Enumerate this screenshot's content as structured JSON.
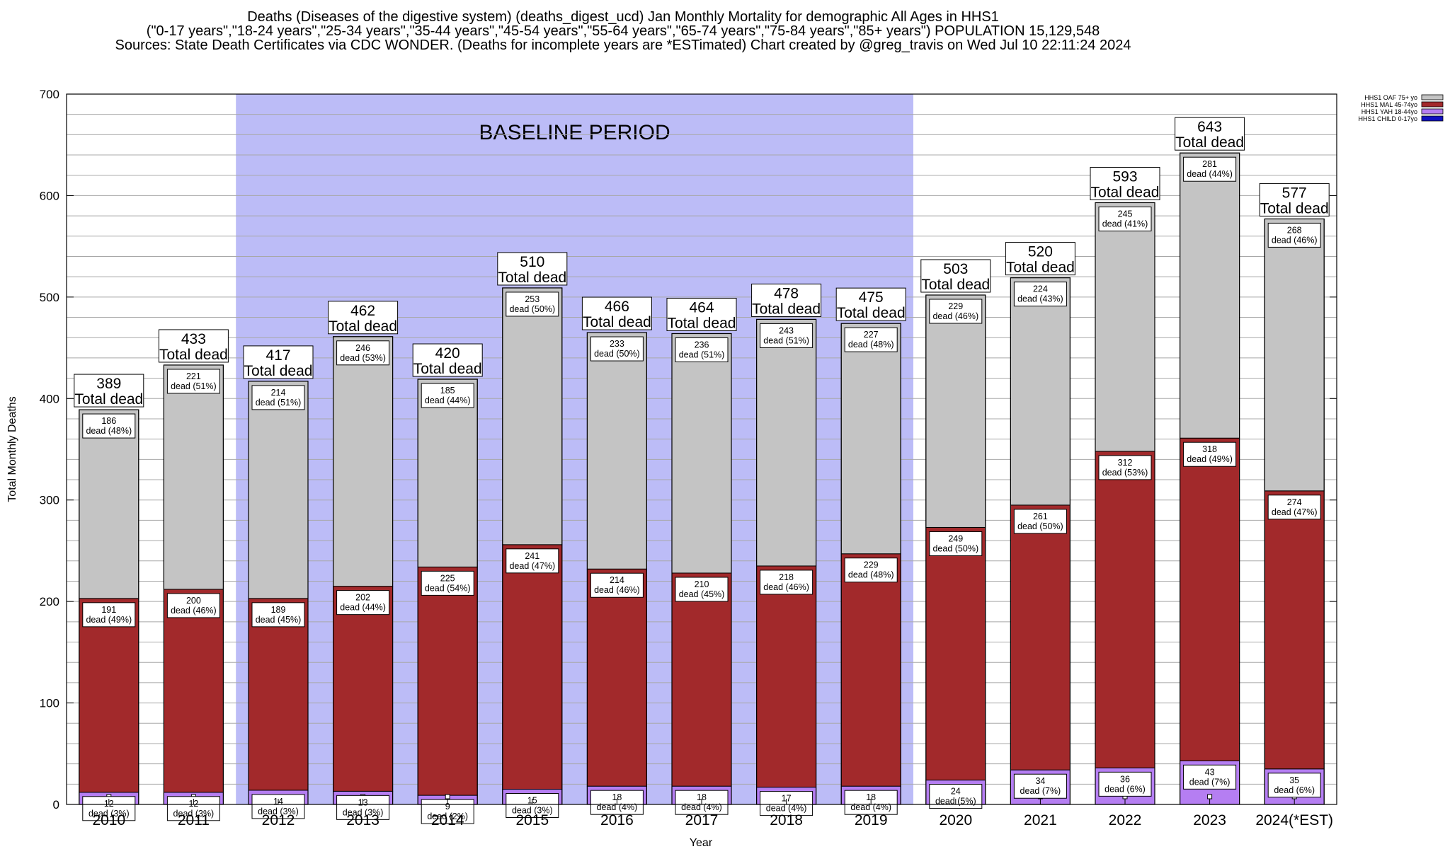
{
  "title_lines": [
    "Deaths (Diseases of the digestive system) (deaths_digest_ucd) Jan Monthly Mortality for demographic All Ages in HHS1",
    "(\"0-17 years\",\"18-24 years\",\"25-34 years\",\"35-44 years\",\"45-54 years\",\"55-64 years\",\"65-74 years\",\"75-84 years\",\"85+ years\") POPULATION 15,129,548",
    "Sources: State Death Certificates via CDC WONDER. (Deaths for incomplete years are *ESTimated)                Chart created by @greg_travis on Wed Jul 10 22:11:24 2024"
  ],
  "chart_data": {
    "type": "bar",
    "stacked": true,
    "categories": [
      "2010",
      "2011",
      "2012",
      "2013",
      "2014",
      "2015",
      "2016",
      "2017",
      "2018",
      "2019",
      "2020",
      "2021",
      "2022",
      "2023",
      "2024(*EST)"
    ],
    "xlabel": "Year",
    "ylabel": "Total Monthly Deaths",
    "ylim": [
      0,
      700
    ],
    "y_major_ticks": [
      0,
      100,
      200,
      300,
      400,
      500,
      600,
      700
    ],
    "y_minor_step": 20,
    "grid": true,
    "legend_position": "top-right",
    "baseline_period": {
      "label": "BASELINE PERIOD",
      "from": "2012",
      "to": "2019",
      "color": "#bcbcf7"
    },
    "total_label_suffix": "Total dead",
    "segment_label_word": "dead",
    "totals": [
      389,
      433,
      417,
      462,
      420,
      510,
      466,
      464,
      478,
      475,
      503,
      520,
      593,
      643,
      577
    ],
    "series": [
      {
        "name": "HHS1 CHILD 0-17yo",
        "color": "#1010c0",
        "values": [
          0,
          0,
          0,
          0,
          0,
          0,
          0,
          0,
          0,
          0,
          0,
          0,
          0,
          0,
          0
        ],
        "labeled": false
      },
      {
        "name": "HHS1 YAH 18-44yo",
        "color": "#b57ef2",
        "values": [
          12,
          12,
          14,
          13,
          9,
          15,
          18,
          18,
          17,
          18,
          24,
          34,
          36,
          43,
          35
        ],
        "percents": [
          "3%",
          "3%",
          "3%",
          "3%",
          "2%",
          "3%",
          "4%",
          "4%",
          "4%",
          "4%",
          "5%",
          "7%",
          "6%",
          "7%",
          "6%"
        ],
        "labeled": true
      },
      {
        "name": "HHS1 MAL 45-74yo",
        "color": "#a2292b",
        "values": [
          191,
          200,
          189,
          202,
          225,
          241,
          214,
          210,
          218,
          229,
          249,
          261,
          312,
          318,
          274
        ],
        "percents": [
          "49%",
          "46%",
          "45%",
          "44%",
          "54%",
          "47%",
          "46%",
          "45%",
          "46%",
          "48%",
          "50%",
          "50%",
          "53%",
          "49%",
          "47%"
        ],
        "labeled": true
      },
      {
        "name": "HHS1 OAF 75+ yo",
        "color": "#c4c4c4",
        "values": [
          186,
          221,
          214,
          246,
          185,
          253,
          233,
          236,
          243,
          227,
          229,
          224,
          245,
          281,
          268
        ],
        "percents": [
          "48%",
          "51%",
          "51%",
          "53%",
          "44%",
          "50%",
          "50%",
          "51%",
          "51%",
          "48%",
          "46%",
          "43%",
          "41%",
          "44%",
          "46%"
        ],
        "labeled": true
      }
    ]
  }
}
